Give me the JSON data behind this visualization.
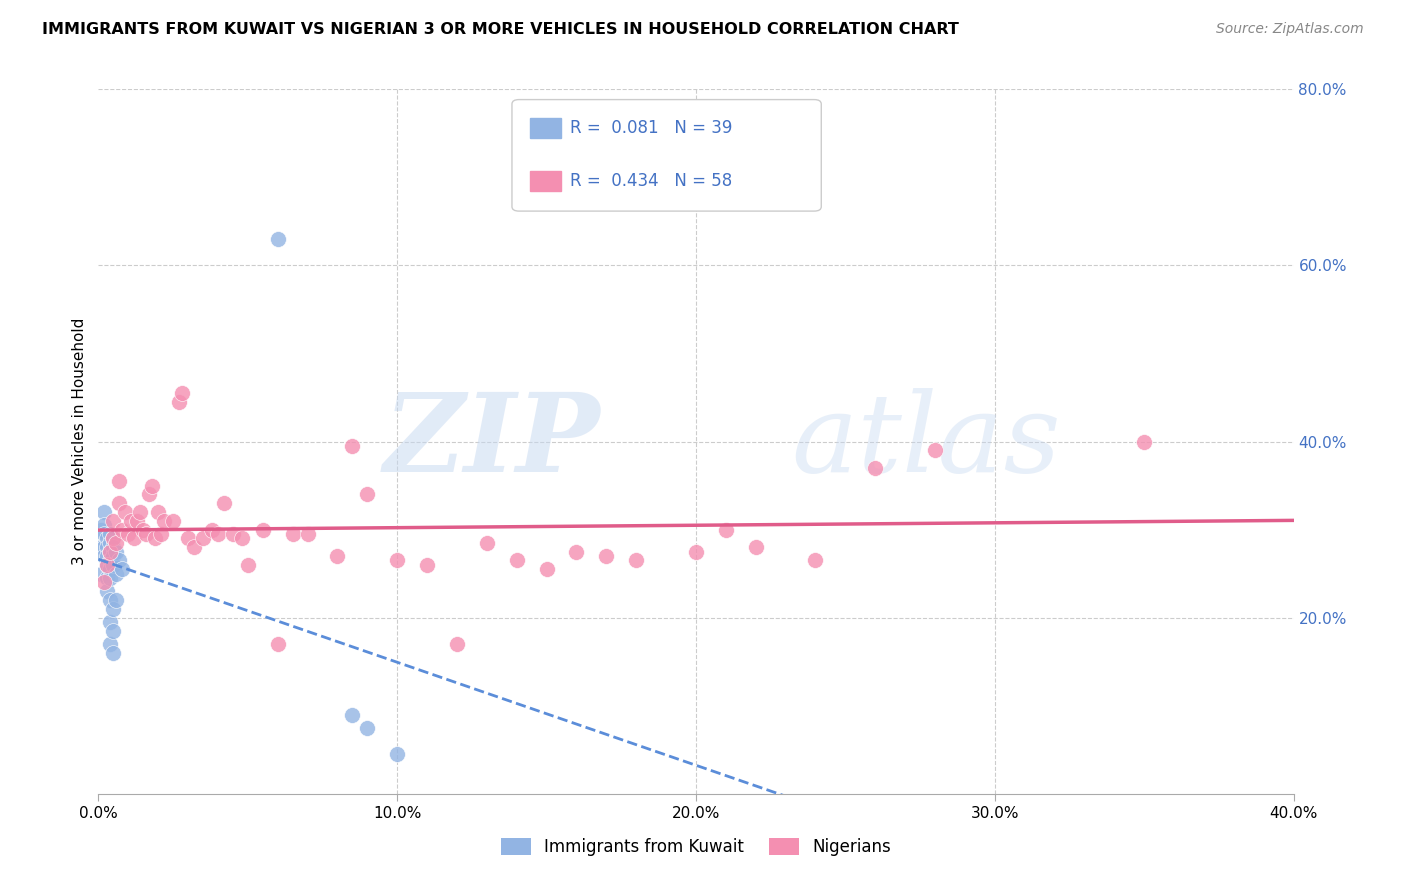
{
  "title": "IMMIGRANTS FROM KUWAIT VS NIGERIAN 3 OR MORE VEHICLES IN HOUSEHOLD CORRELATION CHART",
  "source": "Source: ZipAtlas.com",
  "ylabel": "3 or more Vehicles in Household",
  "xlim": [
    0.0,
    0.4
  ],
  "ylim": [
    0.0,
    0.8
  ],
  "xticks": [
    0.0,
    0.1,
    0.2,
    0.3,
    0.4
  ],
  "xtick_labels": [
    "0.0%",
    "10.0%",
    "20.0%",
    "30.0%",
    "40.0%"
  ],
  "right_yticks": [
    0.2,
    0.4,
    0.6,
    0.8
  ],
  "right_ytick_labels": [
    "20.0%",
    "40.0%",
    "60.0%",
    "80.0%"
  ],
  "kuwait_R": 0.081,
  "kuwait_N": 39,
  "nigerian_R": 0.434,
  "nigerian_N": 58,
  "kuwait_color": "#92b4e3",
  "nigerian_color": "#f48fb1",
  "kuwait_line_color": "#5b8dd9",
  "nigerian_line_color": "#e05c8a",
  "legend_label_kuwait": "Immigrants from Kuwait",
  "legend_label_nigerian": "Nigerians",
  "watermark_zip": "ZIP",
  "watermark_atlas": "atlas",
  "grid_color": "#cccccc",
  "blue_text_color": "#4472c4",
  "kuwait_x": [
    0.001,
    0.001,
    0.001,
    0.002,
    0.002,
    0.002,
    0.002,
    0.002,
    0.003,
    0.003,
    0.003,
    0.003,
    0.003,
    0.003,
    0.004,
    0.004,
    0.004,
    0.004,
    0.004,
    0.004,
    0.004,
    0.004,
    0.004,
    0.005,
    0.005,
    0.005,
    0.005,
    0.005,
    0.005,
    0.005,
    0.006,
    0.006,
    0.006,
    0.007,
    0.008,
    0.06,
    0.085,
    0.09,
    0.1
  ],
  "kuwait_y": [
    0.3,
    0.28,
    0.25,
    0.32,
    0.305,
    0.295,
    0.28,
    0.27,
    0.29,
    0.28,
    0.27,
    0.26,
    0.245,
    0.23,
    0.295,
    0.285,
    0.275,
    0.265,
    0.255,
    0.245,
    0.22,
    0.195,
    0.17,
    0.29,
    0.28,
    0.27,
    0.26,
    0.21,
    0.185,
    0.16,
    0.275,
    0.25,
    0.22,
    0.265,
    0.255,
    0.63,
    0.09,
    0.075,
    0.045
  ],
  "nigerian_x": [
    0.002,
    0.003,
    0.004,
    0.005,
    0.005,
    0.006,
    0.007,
    0.007,
    0.008,
    0.009,
    0.01,
    0.011,
    0.012,
    0.013,
    0.014,
    0.015,
    0.016,
    0.017,
    0.018,
    0.019,
    0.02,
    0.021,
    0.022,
    0.025,
    0.027,
    0.028,
    0.03,
    0.032,
    0.035,
    0.038,
    0.04,
    0.042,
    0.045,
    0.048,
    0.05,
    0.055,
    0.06,
    0.065,
    0.07,
    0.08,
    0.085,
    0.09,
    0.1,
    0.11,
    0.12,
    0.13,
    0.14,
    0.15,
    0.16,
    0.17,
    0.18,
    0.2,
    0.21,
    0.22,
    0.24,
    0.26,
    0.28,
    0.35
  ],
  "nigerian_y": [
    0.24,
    0.26,
    0.275,
    0.29,
    0.31,
    0.285,
    0.355,
    0.33,
    0.3,
    0.32,
    0.295,
    0.31,
    0.29,
    0.31,
    0.32,
    0.3,
    0.295,
    0.34,
    0.35,
    0.29,
    0.32,
    0.295,
    0.31,
    0.31,
    0.445,
    0.455,
    0.29,
    0.28,
    0.29,
    0.3,
    0.295,
    0.33,
    0.295,
    0.29,
    0.26,
    0.3,
    0.17,
    0.295,
    0.295,
    0.27,
    0.395,
    0.34,
    0.265,
    0.26,
    0.17,
    0.285,
    0.265,
    0.255,
    0.275,
    0.27,
    0.265,
    0.275,
    0.3,
    0.28,
    0.265,
    0.37,
    0.39,
    0.4
  ]
}
